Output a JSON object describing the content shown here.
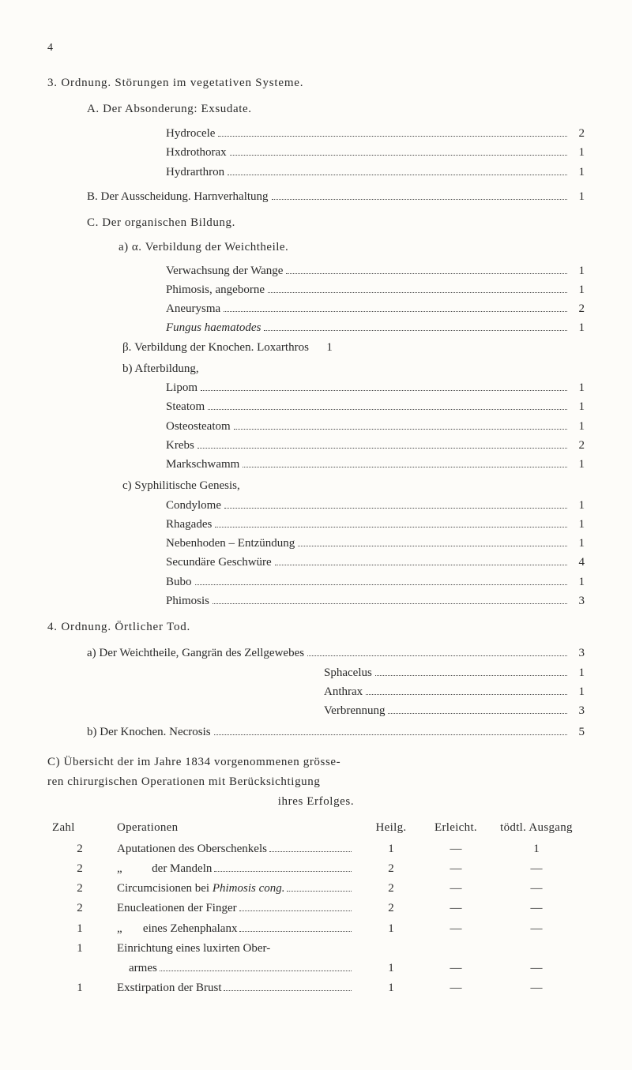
{
  "page_number": "4",
  "section3": {
    "head": "3. Ordnung. Störungen im vegetativen Systeme.",
    "A": {
      "head": "A. Der Absonderung: Exsudate.",
      "items": [
        {
          "label": "Hydrocele",
          "val": "2"
        },
        {
          "label": "Hxdrothorax",
          "val": "1"
        },
        {
          "label": "Hydrarthron",
          "val": "1"
        }
      ]
    },
    "B": {
      "head_label": "B. Der Ausscheidung. Harnverhaltung",
      "head_val": "1"
    },
    "C": {
      "head": "C. Der organischen Bildung.",
      "a_head": "a) α. Verbildung der Weichtheile.",
      "a_items": [
        {
          "label": "Verwachsung der Wange",
          "val": "1"
        },
        {
          "label": "Phimosis, angeborne",
          "val": "1"
        },
        {
          "label": "Aneurysma",
          "val": "2"
        },
        {
          "label": "Fungus haematodes",
          "val": "1",
          "ital": true
        }
      ],
      "beta": {
        "label": "β. Verbildung der Knochen. Loxarthros",
        "val": "1"
      },
      "b_head": "b) Afterbildung,",
      "b_items": [
        {
          "label": "Lipom",
          "val": "1"
        },
        {
          "label": "Steatom",
          "val": "1"
        },
        {
          "label": "Osteosteatom",
          "val": "1"
        },
        {
          "label": "Krebs",
          "val": "2"
        },
        {
          "label": "Markschwamm",
          "val": "1"
        }
      ],
      "c_head": "c) Syphilitische Genesis,",
      "c_items": [
        {
          "label": "Condylome",
          "val": "1"
        },
        {
          "label": "Rhagades",
          "val": "1"
        },
        {
          "label": "Nebenhoden – Entzündung",
          "val": "1"
        },
        {
          "label": "Secundäre Geschwüre",
          "val": "4"
        },
        {
          "label": "Bubo",
          "val": "1"
        },
        {
          "label": "Phimosis",
          "val": "3"
        }
      ]
    }
  },
  "section4": {
    "head": "4. Ordnung. Örtlicher Tod.",
    "a_label": "a) Der Weichtheile, Gangrän des Zellgewebes",
    "a_val": "3",
    "a_right": [
      {
        "label": "Sphacelus",
        "val": "1"
      },
      {
        "label": "Anthrax",
        "val": "1"
      },
      {
        "label": "Verbrennung",
        "val": "3"
      }
    ],
    "b_label": "b) Der Knochen. Necrosis",
    "b_val": "5"
  },
  "sectionC": {
    "line1": "C) Übersicht der im Jahre 1834 vorgenommenen grösse-",
    "line2": "ren chirurgischen Operationen mit Berücksichtigung",
    "line3": "ihres Erfolges.",
    "table": {
      "headers": [
        "Zahl",
        "Operationen",
        "Heilg.",
        "Erleicht.",
        "tödtl. Ausgang"
      ],
      "rows": [
        {
          "z": "2",
          "op": "Aputationen des Oberschenkels",
          "h": "1",
          "e": "—",
          "t": "1"
        },
        {
          "z": "2",
          "op": "„          der Mandeln",
          "h": "2",
          "e": "—",
          "t": "—"
        },
        {
          "z": "2",
          "op": "Circumcisionen bei Phimosis cong.",
          "ital_part": "Phimosis cong.",
          "plain_part": "Circumcisionen bei ",
          "h": "2",
          "e": "—",
          "t": "—"
        },
        {
          "z": "2",
          "op": "Enucleationen der Finger",
          "h": "2",
          "e": "—",
          "t": "—"
        },
        {
          "z": "1",
          "op": "„       eines Zehenphalanx",
          "h": "1",
          "e": "—",
          "t": "—"
        },
        {
          "z": "1",
          "op": "Einrichtung eines luxirten Ober-",
          "h": "",
          "e": "",
          "t": "",
          "nodots": true
        },
        {
          "z": "",
          "op": "    armes",
          "h": "1",
          "e": "—",
          "t": "—"
        },
        {
          "z": "1",
          "op": "Exstirpation der Brust",
          "h": "1",
          "e": "—",
          "t": "—"
        }
      ]
    }
  },
  "colors": {
    "text": "#2a2a2a",
    "bg": "#fdfcf9",
    "dot": "#4a4a4a"
  }
}
